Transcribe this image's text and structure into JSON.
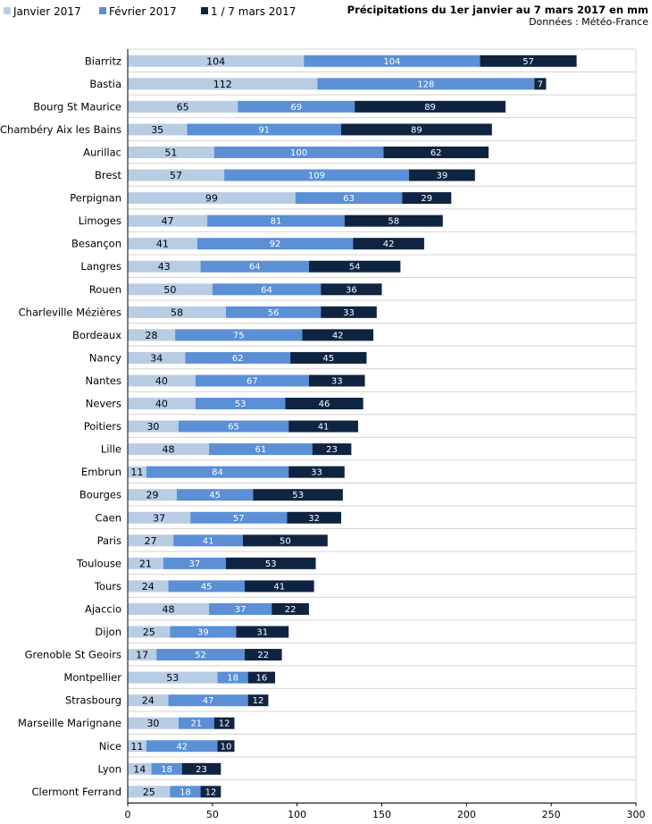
{
  "chart_data": {
    "type": "bar",
    "orientation": "horizontal",
    "stacked": true,
    "title": "Précipitations du 1er janvier au 7 mars 2017 en mm",
    "subtitle": "Données : Météo-France",
    "categories": [
      "Biarritz",
      "Bastia",
      "Bourg St Maurice",
      "Chambéry Aix les Bains",
      "Aurillac",
      "Brest",
      "Perpignan",
      "Limoges",
      "Besançon",
      "Langres",
      "Rouen",
      "Charleville Mézières",
      "Bordeaux",
      "Nancy",
      "Nantes",
      "Nevers",
      "Poitiers",
      "Lille",
      "Embrun",
      "Bourges",
      "Caen",
      "Paris",
      "Toulouse",
      "Tours",
      "Ajaccio",
      "Dijon",
      "Grenoble St Geoirs",
      "Montpellier",
      "Strasbourg",
      "Marseille Marignane",
      "Nice",
      "Lyon",
      "Clermont Ferrand"
    ],
    "series": [
      {
        "name": "Janvier 2017",
        "color": "#b8cce4",
        "values": [
          104,
          112,
          65,
          35,
          51,
          57,
          99,
          47,
          41,
          43,
          50,
          58,
          28,
          34,
          40,
          40,
          30,
          48,
          11,
          29,
          37,
          27,
          21,
          24,
          48,
          25,
          17,
          53,
          24,
          30,
          11,
          14,
          25
        ]
      },
      {
        "name": "Février 2017",
        "color": "#5b8fd6",
        "values": [
          104,
          128,
          69,
          91,
          100,
          109,
          63,
          81,
          92,
          64,
          64,
          56,
          75,
          62,
          67,
          53,
          65,
          61,
          84,
          45,
          57,
          41,
          37,
          45,
          37,
          39,
          52,
          18,
          47,
          21,
          42,
          18,
          18
        ]
      },
      {
        "name": "1 / 7 mars 2017",
        "color": "#0f2441",
        "values": [
          57,
          7,
          89,
          89,
          62,
          39,
          29,
          58,
          42,
          54,
          36,
          33,
          42,
          45,
          33,
          46,
          41,
          23,
          33,
          53,
          32,
          50,
          53,
          41,
          22,
          31,
          22,
          16,
          12,
          12,
          10,
          23,
          12
        ]
      }
    ],
    "xlim": [
      0,
      300
    ],
    "xticks": [
      0,
      50,
      100,
      150,
      200,
      250,
      300
    ],
    "grid": "horizontal separators",
    "legend_position": "top-left"
  }
}
